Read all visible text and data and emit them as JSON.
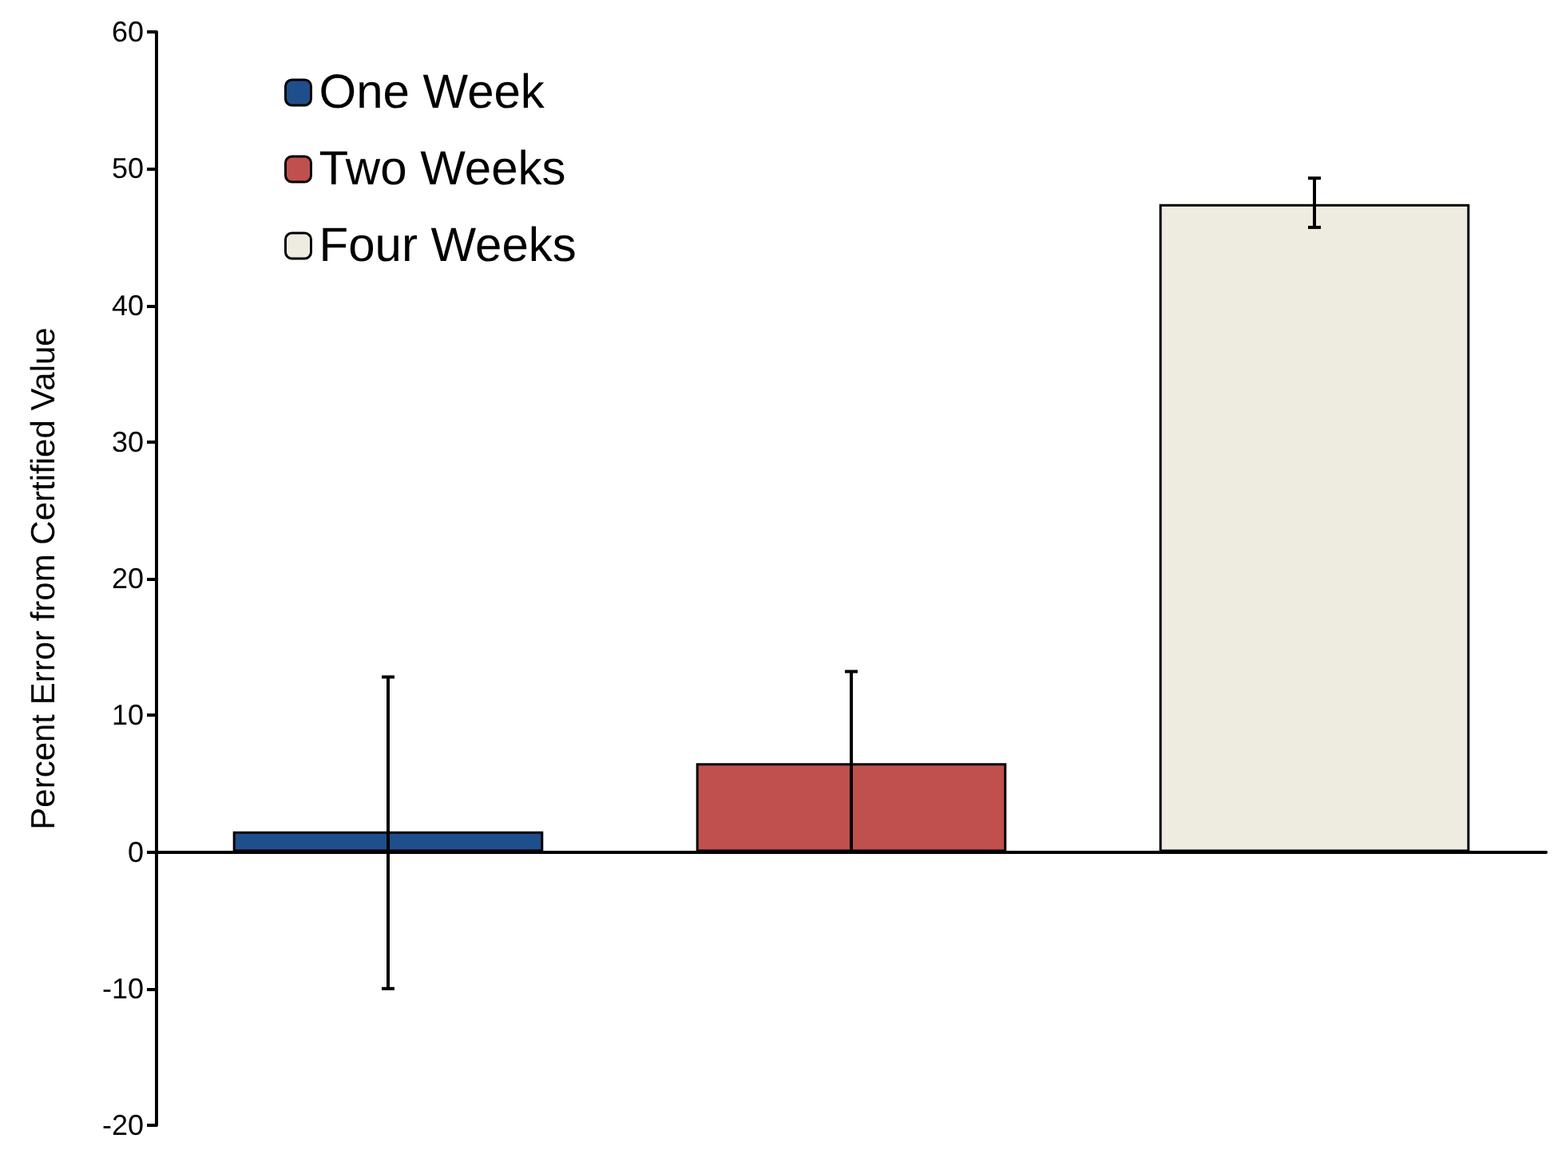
{
  "chart_data": {
    "type": "bar",
    "ylabel": "Percent Error from Certified Value",
    "categories": [
      null,
      null,
      null
    ],
    "series": [
      {
        "name": "One Week",
        "color": "#1f4e8c",
        "values": [
          1.5,
          null,
          null
        ],
        "errors": [
          [
            -10,
            12.8
          ],
          null,
          null
        ]
      },
      {
        "name": "Two Weeks",
        "color": "#c0504d",
        "values": [
          null,
          6.5,
          null
        ],
        "errors": [
          null,
          [
            0,
            13.2
          ],
          null
        ]
      },
      {
        "name": "Four Weeks",
        "color": "#eeece1",
        "values": [
          null,
          null,
          47.4
        ],
        "errors": [
          null,
          null,
          [
            45.7,
            49.3
          ]
        ]
      }
    ],
    "ylim": [
      -20,
      60
    ],
    "yticks": [
      -20,
      -10,
      0,
      10,
      20,
      30,
      40,
      50,
      60
    ],
    "legend": "top left"
  }
}
